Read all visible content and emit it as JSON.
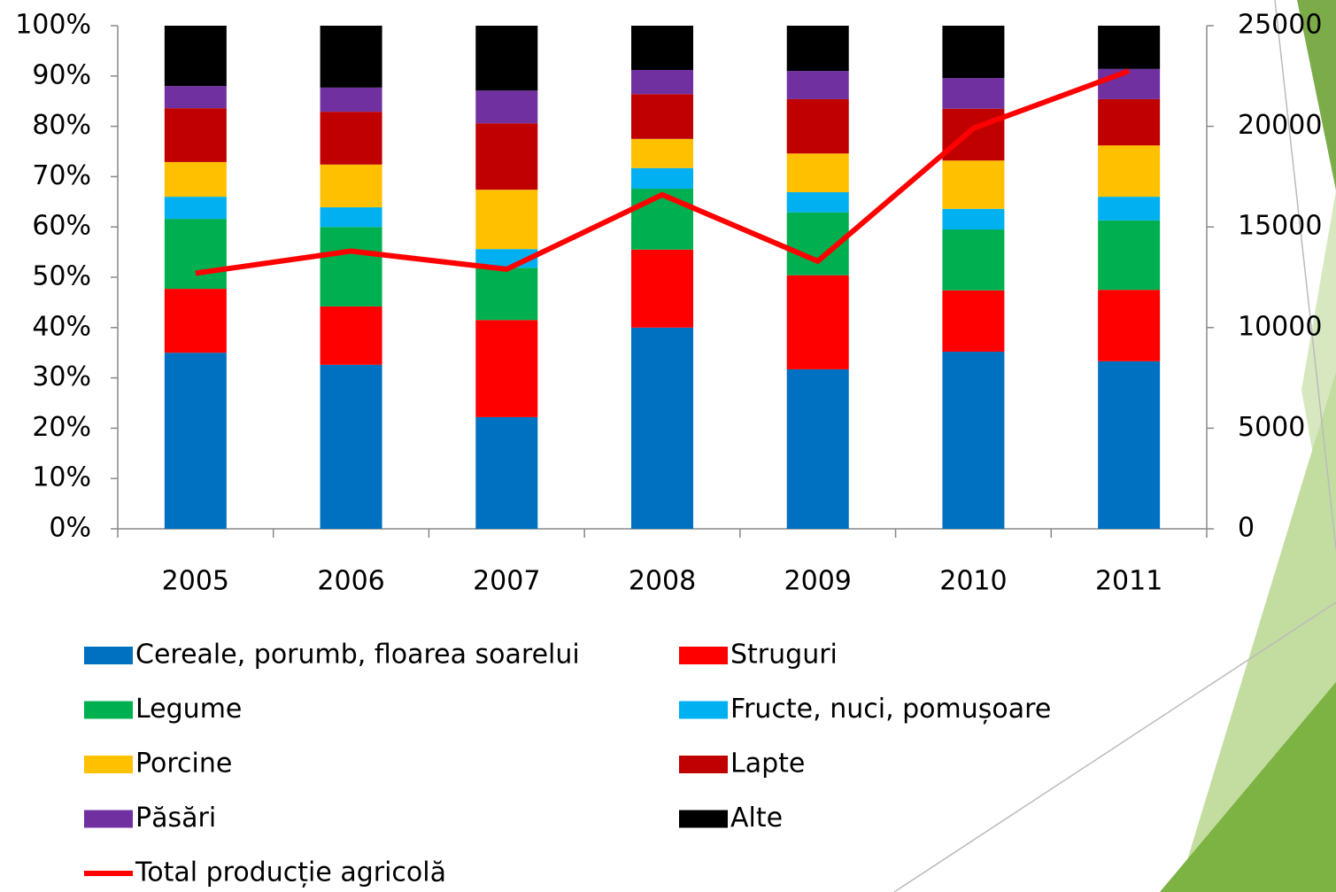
{
  "chart_data": {
    "type": "stacked_bar_line",
    "categories": [
      "2005",
      "2006",
      "2007",
      "2008",
      "2009",
      "2010",
      "2011"
    ],
    "ylim": [
      0,
      100
    ],
    "yticks": [
      {
        "value": 0,
        "label": "0%"
      },
      {
        "value": 10,
        "label": "10%"
      },
      {
        "value": 20,
        "label": "20%"
      },
      {
        "value": 30,
        "label": "30%"
      },
      {
        "value": 40,
        "label": "40%"
      },
      {
        "value": 50,
        "label": "50%"
      },
      {
        "value": 60,
        "label": "60%"
      },
      {
        "value": 70,
        "label": "70%"
      },
      {
        "value": 80,
        "label": "80%"
      },
      {
        "value": 90,
        "label": "90%"
      },
      {
        "value": 100,
        "label": "100%"
      }
    ],
    "y2lim": [
      0,
      25000
    ],
    "y2ticks": [
      0,
      5000,
      10000,
      15000,
      20000,
      25000
    ],
    "series": [
      {
        "name": "Cereale, porumb, floarea soarelui",
        "color": "#0070c0",
        "values": [
          35.0,
          32.6,
          22.2,
          40.0,
          31.7,
          35.2,
          33.3
        ]
      },
      {
        "name": "Struguri",
        "color": "#ff0000",
        "values": [
          12.7,
          11.6,
          19.3,
          15.5,
          18.7,
          12.2,
          14.2
        ]
      },
      {
        "name": "Legume",
        "color": "#00b050",
        "values": [
          13.9,
          15.8,
          10.4,
          12.1,
          12.5,
          12.1,
          13.8
        ]
      },
      {
        "name": "Fructe, nuci, pomușoare",
        "color": "#00b0f0",
        "values": [
          4.4,
          3.9,
          3.7,
          4.1,
          4.0,
          4.1,
          4.7
        ]
      },
      {
        "name": "Porcine",
        "color": "#ffc000",
        "values": [
          6.9,
          8.5,
          11.8,
          5.8,
          7.7,
          9.6,
          10.2
        ]
      },
      {
        "name": "Lapte",
        "color": "#c00000",
        "values": [
          10.7,
          10.5,
          13.2,
          8.9,
          10.8,
          10.3,
          9.2
        ]
      },
      {
        "name": "Păsări",
        "color": "#7030a0",
        "values": [
          4.4,
          4.8,
          6.5,
          4.8,
          5.6,
          6.1,
          6.0
        ]
      },
      {
        "name": "Alte",
        "color": "#000000",
        "values": [
          12.0,
          12.3,
          12.9,
          8.8,
          9.0,
          10.4,
          8.6
        ]
      },
      {
        "name": "Total producție agricolă",
        "color": "#ff0000",
        "type": "line",
        "axis": "y2",
        "values": [
          12700,
          13800,
          12900,
          16600,
          13300,
          19900,
          22750
        ]
      }
    ]
  }
}
